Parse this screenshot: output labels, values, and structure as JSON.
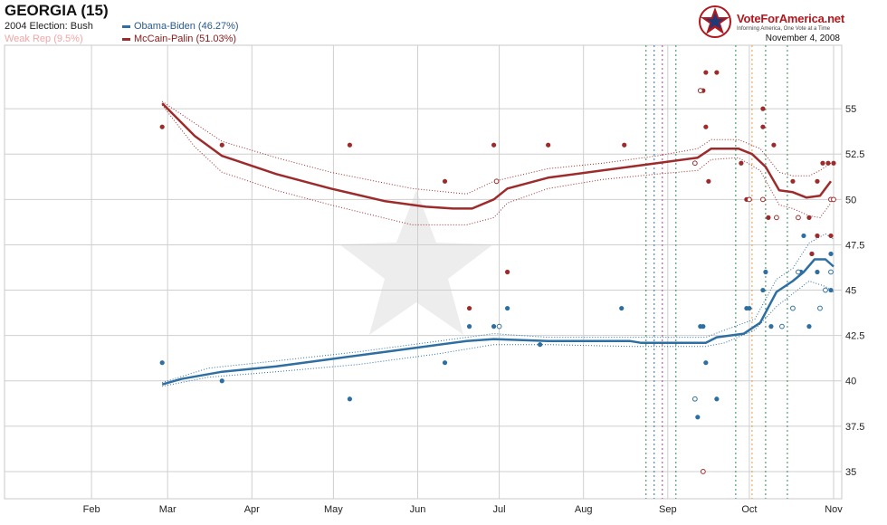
{
  "header": {
    "title": "GEORGIA (15)",
    "prev_election": "2004 Election: Bush",
    "lean": "Weak Rep (9.5%)",
    "date": "November 4, 2008"
  },
  "brand": {
    "name": "VoteForAmerica.net",
    "tagline": "Informing America, One Vote at a Time",
    "color": "#b0181f"
  },
  "chart_data": {
    "type": "line",
    "x_tick_labels": [
      "Feb",
      "Mar",
      "Apr",
      "May",
      "Jun",
      "Jul",
      "Aug",
      "Sep",
      "Oct",
      "Nov"
    ],
    "x_tick_days": [
      32,
      60,
      91,
      121,
      152,
      182,
      213,
      244,
      274,
      305
    ],
    "xlim_days": [
      0,
      308
    ],
    "ylim": [
      33.5,
      58.5
    ],
    "y_ticks": [
      35,
      37.5,
      40,
      42.5,
      45,
      47.5,
      50,
      52.5,
      55
    ],
    "y_tick_labels": [
      "35",
      "37.5",
      "40",
      "42.5",
      "45",
      "47.5",
      "50",
      "52.5",
      "55"
    ],
    "grid": true,
    "series": [
      {
        "name": "Obama-Biden (46.27%)",
        "color": "#2e6fa3",
        "trend": [
          [
            58,
            39.8
          ],
          [
            65,
            40.1
          ],
          [
            80,
            40.5
          ],
          [
            100,
            40.8
          ],
          [
            120,
            41.2
          ],
          [
            140,
            41.6
          ],
          [
            155,
            41.9
          ],
          [
            170,
            42.2
          ],
          [
            180,
            42.3
          ],
          [
            200,
            42.2
          ],
          [
            230,
            42.2
          ],
          [
            234,
            42.1
          ],
          [
            258,
            42.1
          ],
          [
            262,
            42.4
          ],
          [
            272,
            42.6
          ],
          [
            278,
            43.2
          ],
          [
            284,
            44.9
          ],
          [
            290,
            45.5
          ],
          [
            294,
            46.0
          ],
          [
            298,
            46.7
          ],
          [
            302,
            46.7
          ],
          [
            305,
            46.3
          ]
        ],
        "band_upper": [
          [
            58,
            39.9
          ],
          [
            75,
            40.7
          ],
          [
            100,
            41.1
          ],
          [
            130,
            41.6
          ],
          [
            160,
            42.2
          ],
          [
            180,
            42.6
          ],
          [
            200,
            42.4
          ],
          [
            230,
            42.4
          ],
          [
            258,
            42.4
          ],
          [
            265,
            42.8
          ],
          [
            276,
            43.4
          ],
          [
            284,
            45.6
          ],
          [
            290,
            46.2
          ],
          [
            296,
            47.6
          ],
          [
            302,
            48.1
          ],
          [
            305,
            47.8
          ]
        ],
        "band_lower": [
          [
            58,
            39.7
          ],
          [
            75,
            40.2
          ],
          [
            100,
            40.5
          ],
          [
            130,
            40.9
          ],
          [
            160,
            41.5
          ],
          [
            180,
            42.0
          ],
          [
            200,
            42.0
          ],
          [
            230,
            41.9
          ],
          [
            258,
            41.9
          ],
          [
            265,
            42.1
          ],
          [
            276,
            42.8
          ],
          [
            284,
            44.1
          ],
          [
            290,
            44.8
          ],
          [
            296,
            45.5
          ],
          [
            302,
            45.2
          ],
          [
            305,
            44.9
          ]
        ],
        "polls": [
          [
            58,
            41
          ],
          [
            80,
            40
          ],
          [
            127,
            39
          ],
          [
            162,
            41
          ],
          [
            171,
            43
          ],
          [
            180,
            43
          ],
          [
            185,
            44
          ],
          [
            197,
            42
          ],
          [
            227,
            44
          ],
          [
            254,
            39
          ],
          [
            255,
            38
          ],
          [
            256,
            43
          ],
          [
            257,
            43
          ],
          [
            258,
            41
          ],
          [
            262,
            39
          ],
          [
            273,
            44
          ],
          [
            274,
            44
          ],
          [
            279,
            45
          ],
          [
            280,
            46
          ],
          [
            282,
            43
          ],
          [
            286,
            43
          ],
          [
            293,
            46
          ],
          [
            294,
            48
          ],
          [
            296,
            43
          ],
          [
            297,
            47
          ],
          [
            299,
            46
          ],
          [
            304,
            47
          ],
          [
            304,
            45
          ]
        ],
        "polls_open": [
          [
            182,
            43
          ],
          [
            254,
            39
          ],
          [
            286,
            43
          ],
          [
            290,
            44
          ],
          [
            292,
            46
          ],
          [
            300,
            44
          ],
          [
            302,
            45
          ],
          [
            304,
            46
          ]
        ]
      },
      {
        "name": "McCain-Palin (51.03%)",
        "color": "#9e2b2b",
        "trend": [
          [
            58,
            55.3
          ],
          [
            70,
            53.5
          ],
          [
            80,
            52.4
          ],
          [
            100,
            51.4
          ],
          [
            120,
            50.6
          ],
          [
            140,
            49.9
          ],
          [
            155,
            49.6
          ],
          [
            165,
            49.5
          ],
          [
            172,
            49.5
          ],
          [
            180,
            50.0
          ],
          [
            185,
            50.6
          ],
          [
            200,
            51.2
          ],
          [
            220,
            51.6
          ],
          [
            240,
            52.0
          ],
          [
            255,
            52.3
          ],
          [
            260,
            52.8
          ],
          [
            270,
            52.8
          ],
          [
            275,
            52.5
          ],
          [
            280,
            51.8
          ],
          [
            285,
            50.5
          ],
          [
            290,
            50.4
          ],
          [
            295,
            50.1
          ],
          [
            300,
            50.2
          ],
          [
            304,
            51.0
          ]
        ],
        "band_upper": [
          [
            58,
            55.4
          ],
          [
            70,
            54.2
          ],
          [
            80,
            53.2
          ],
          [
            100,
            52.3
          ],
          [
            120,
            51.5
          ],
          [
            150,
            50.6
          ],
          [
            170,
            50.3
          ],
          [
            180,
            51.0
          ],
          [
            200,
            51.7
          ],
          [
            220,
            52.0
          ],
          [
            240,
            52.4
          ],
          [
            255,
            52.8
          ],
          [
            260,
            53.3
          ],
          [
            270,
            53.3
          ],
          [
            278,
            52.8
          ],
          [
            285,
            51.5
          ],
          [
            290,
            51.3
          ],
          [
            296,
            51.3
          ],
          [
            300,
            51.6
          ],
          [
            304,
            52.0
          ]
        ],
        "band_lower": [
          [
            58,
            55.2
          ],
          [
            70,
            52.9
          ],
          [
            80,
            51.5
          ],
          [
            100,
            50.5
          ],
          [
            120,
            49.7
          ],
          [
            150,
            48.6
          ],
          [
            170,
            48.6
          ],
          [
            180,
            49.0
          ],
          [
            185,
            49.8
          ],
          [
            200,
            50.6
          ],
          [
            220,
            51.1
          ],
          [
            240,
            51.4
          ],
          [
            255,
            51.6
          ],
          [
            260,
            52.2
          ],
          [
            270,
            52.3
          ],
          [
            278,
            51.6
          ],
          [
            285,
            49.7
          ],
          [
            290,
            49.5
          ],
          [
            296,
            49.1
          ],
          [
            300,
            49.0
          ],
          [
            304,
            49.8
          ]
        ],
        "polls": [
          [
            58,
            54
          ],
          [
            80,
            53
          ],
          [
            127,
            53
          ],
          [
            162,
            51
          ],
          [
            171,
            44
          ],
          [
            180,
            53
          ],
          [
            185,
            46
          ],
          [
            200,
            53
          ],
          [
            228,
            53
          ],
          [
            256,
            56
          ],
          [
            257,
            56
          ],
          [
            258,
            57
          ],
          [
            258,
            54
          ],
          [
            259,
            51
          ],
          [
            262,
            57
          ],
          [
            271,
            52
          ],
          [
            273,
            50
          ],
          [
            274,
            50
          ],
          [
            279,
            55
          ],
          [
            279,
            54
          ],
          [
            281,
            49
          ],
          [
            283,
            53
          ],
          [
            290,
            51
          ],
          [
            296,
            49
          ],
          [
            297,
            47
          ],
          [
            299,
            48
          ],
          [
            299,
            51
          ],
          [
            301,
            52
          ],
          [
            303,
            52
          ],
          [
            304,
            48
          ],
          [
            305,
            52
          ]
        ],
        "polls_open": [
          [
            181,
            51
          ],
          [
            254,
            52
          ],
          [
            256,
            56
          ],
          [
            257,
            35
          ],
          [
            274,
            50
          ],
          [
            279,
            50
          ],
          [
            284,
            49
          ],
          [
            292,
            49
          ],
          [
            304,
            50
          ],
          [
            305,
            50
          ]
        ]
      }
    ],
    "vlines": [
      {
        "day": 236,
        "color": "#2e8b57"
      },
      {
        "day": 239,
        "color": "#2e6fa3"
      },
      {
        "day": 242,
        "color": "#b0408c"
      },
      {
        "day": 247,
        "color": "#2e8b57"
      },
      {
        "day": 269,
        "color": "#2e8b57"
      },
      {
        "day": 275,
        "color": "#e89a3c"
      },
      {
        "day": 280,
        "color": "#2e8b57"
      },
      {
        "day": 288,
        "color": "#2e8b57"
      }
    ]
  }
}
